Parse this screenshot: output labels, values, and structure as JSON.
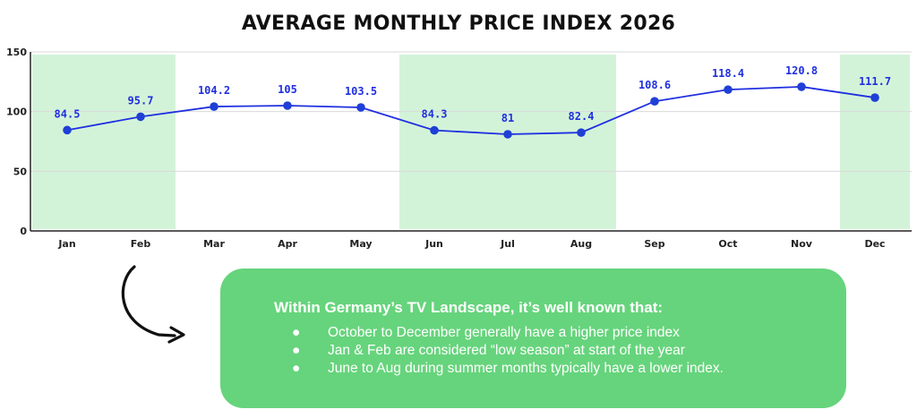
{
  "title": "AVERAGE MONTHLY PRICE INDEX 2026",
  "chart_data": {
    "type": "line",
    "title": "AVERAGE MONTHLY PRICE INDEX 2026",
    "categories": [
      "Jan",
      "Feb",
      "Mar",
      "Apr",
      "May",
      "Jun",
      "Jul",
      "Aug",
      "Sep",
      "Oct",
      "Nov",
      "Dec"
    ],
    "series": [
      {
        "values": [
          84.5,
          95.7,
          104.2,
          105,
          103.5,
          84.3,
          81,
          82.4,
          108.6,
          118.4,
          120.8,
          111.7
        ]
      }
    ],
    "ylim": [
      0,
      150
    ],
    "yticks": [
      "0",
      "50",
      "100",
      "150"
    ],
    "grid": true,
    "highlight_bands": [
      {
        "from": "Jan",
        "to": "Feb"
      },
      {
        "from": "Jun",
        "to": "Aug"
      },
      {
        "from": "Dec",
        "to": "Dec"
      }
    ],
    "colors": {
      "line": "#1f2fe0",
      "marker": "#1f3fd6",
      "label": "#1f2fe0",
      "band": "#d3f3d9",
      "grid": "#d9d9d9"
    }
  },
  "note": {
    "heading": "Within Germany’s TV Landscape, it’s well known that:",
    "bullet_glyph": "●",
    "items": [
      "October to December generally have a higher price index",
      "Jan & Feb are considered “low season” at start of the year",
      "June to Aug during summer months typically have a lower index."
    ],
    "colors": {
      "background": "#66d47c",
      "text": "#ffffff"
    }
  },
  "arrow": {
    "icon": "curved-arrow-icon",
    "color": "#111111"
  }
}
